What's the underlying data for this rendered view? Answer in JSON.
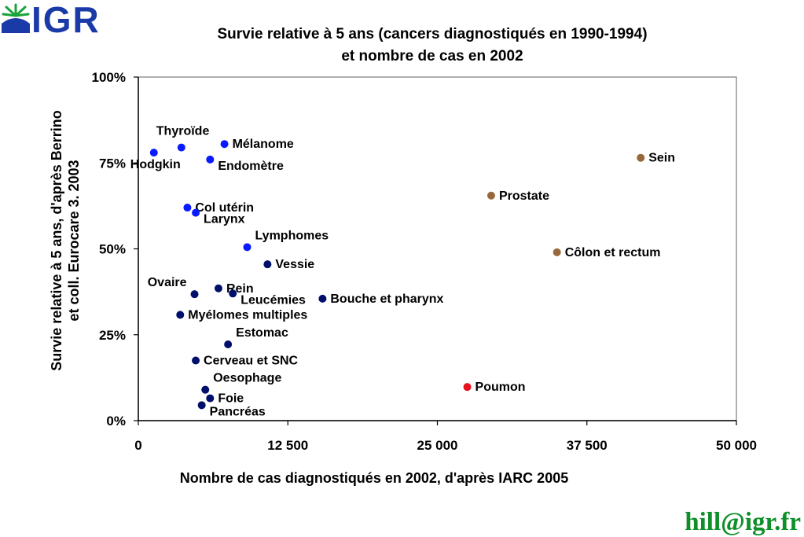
{
  "logo": {
    "text": "IGR"
  },
  "footer": {
    "email": "hill@igr.fr"
  },
  "colors": {
    "low_incidence": "#000f6b",
    "high_survival_blue": "#0a1aff",
    "common_brown": "#96683a",
    "lung_red": "#e8101a",
    "logo_blue": "#1a3aa8",
    "email_green": "#0e8f2a"
  },
  "chart_data": {
    "type": "scatter",
    "title_line1": "Survie relative à 5 ans (cancers diagnostiqués en 1990-1994)",
    "title_line2": "et nombre de cas en 2002",
    "xlabel": "Nombre de cas diagnostiqués en 2002, d'après IARC 2005",
    "ylabel_line1": "Survie relative à 5 ans, d'après Berrino",
    "ylabel_line2": "et coll. Eurocare 3. 2003",
    "xlim": [
      0,
      50000
    ],
    "ylim": [
      0,
      1
    ],
    "x_ticks": [
      0,
      12500,
      25000,
      37500,
      50000
    ],
    "x_tick_labels": [
      "0",
      "12 500",
      "25 000",
      "37 500",
      "50 000"
    ],
    "y_ticks": [
      0,
      0.25,
      0.5,
      0.75,
      1
    ],
    "y_tick_labels": [
      "0%",
      "25%",
      "50%",
      "75%",
      "100%"
    ],
    "grid": false,
    "points": [
      {
        "label": "Hodgkin",
        "x": 1300,
        "y": 0.78,
        "color": "#0a1aff",
        "label_pos": "below-left"
      },
      {
        "label": "Thyroïde",
        "x": 3600,
        "y": 0.795,
        "color": "#0a1aff",
        "label_pos": "above"
      },
      {
        "label": "Mélanome",
        "x": 7200,
        "y": 0.805,
        "color": "#0a1aff",
        "label_pos": "right"
      },
      {
        "label": "Endomètre",
        "x": 6000,
        "y": 0.76,
        "color": "#0a1aff",
        "label_pos": "below-right"
      },
      {
        "label": "Col utérin",
        "x": 4100,
        "y": 0.62,
        "color": "#0a1aff",
        "label_pos": "right"
      },
      {
        "label": "Larynx",
        "x": 4800,
        "y": 0.605,
        "color": "#0a1aff",
        "label_pos": "below-right"
      },
      {
        "label": "Lymphomes",
        "x": 9100,
        "y": 0.505,
        "color": "#0a1aff",
        "label_pos": "above-right"
      },
      {
        "label": "Vessie",
        "x": 10800,
        "y": 0.455,
        "color": "#000f6b",
        "label_pos": "right"
      },
      {
        "label": "Ovaire",
        "x": 4700,
        "y": 0.368,
        "color": "#000f6b",
        "label_pos": "above-left"
      },
      {
        "label": "Rein",
        "x": 6700,
        "y": 0.385,
        "color": "#000f6b",
        "label_pos": "right"
      },
      {
        "label": "Leucémies",
        "x": 7900,
        "y": 0.37,
        "color": "#000f6b",
        "label_pos": "below-right"
      },
      {
        "label": "Bouche et pharynx",
        "x": 15400,
        "y": 0.355,
        "color": "#000f6b",
        "label_pos": "right"
      },
      {
        "label": "Myélomes multiples",
        "x": 3500,
        "y": 0.308,
        "color": "#000f6b",
        "label_pos": "right"
      },
      {
        "label": "Estomac",
        "x": 7500,
        "y": 0.222,
        "color": "#000f6b",
        "label_pos": "above-right"
      },
      {
        "label": "Cerveau et SNC",
        "x": 4800,
        "y": 0.175,
        "color": "#000f6b",
        "label_pos": "right"
      },
      {
        "label": "Oesophage",
        "x": 5600,
        "y": 0.09,
        "color": "#000f6b",
        "label_pos": "above-right"
      },
      {
        "label": "Foie",
        "x": 6000,
        "y": 0.065,
        "color": "#000f6b",
        "label_pos": "right"
      },
      {
        "label": "Pancréas",
        "x": 5300,
        "y": 0.045,
        "color": "#000f6b",
        "label_pos": "below-right"
      },
      {
        "label": "Sein",
        "x": 42000,
        "y": 0.765,
        "color": "#96683a",
        "label_pos": "right"
      },
      {
        "label": "Prostate",
        "x": 29500,
        "y": 0.655,
        "color": "#96683a",
        "label_pos": "right"
      },
      {
        "label": "Côlon et rectum",
        "x": 35000,
        "y": 0.49,
        "color": "#96683a",
        "label_pos": "right"
      },
      {
        "label": "Poumon",
        "x": 27500,
        "y": 0.098,
        "color": "#e8101a",
        "label_pos": "right"
      }
    ]
  }
}
